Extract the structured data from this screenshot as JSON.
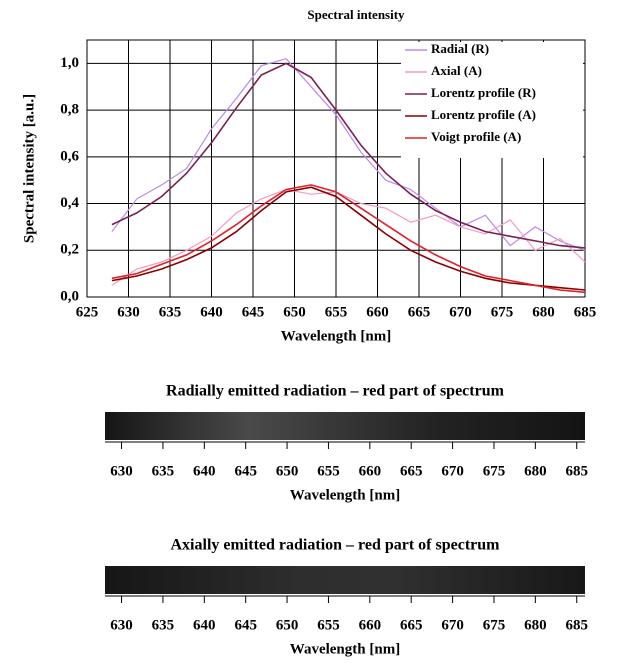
{
  "chart_data": [
    {
      "type": "line",
      "title": "Spectral intensity",
      "xlabel": "Wavelength [nm]",
      "ylabel": "Spectral intensity [a.u.]",
      "x": [
        628,
        631,
        634,
        637,
        640,
        643,
        646,
        649,
        652,
        655,
        658,
        661,
        664,
        667,
        670,
        673,
        676,
        679,
        682,
        685
      ],
      "series": [
        {
          "name": "Radial (R)",
          "color": "#b98ae8",
          "values": [
            0.28,
            0.42,
            0.48,
            0.55,
            0.72,
            0.85,
            0.99,
            1.02,
            0.9,
            0.78,
            0.62,
            0.5,
            0.46,
            0.38,
            0.3,
            0.35,
            0.22,
            0.3,
            0.24,
            0.2
          ]
        },
        {
          "name": "Axial (A)",
          "color": "#f59ac0",
          "values": [
            0.05,
            0.12,
            0.15,
            0.2,
            0.26,
            0.36,
            0.42,
            0.46,
            0.44,
            0.45,
            0.4,
            0.38,
            0.32,
            0.35,
            0.3,
            0.27,
            0.33,
            0.2,
            0.25,
            0.15
          ]
        },
        {
          "name": "Lorentz profile (R)",
          "color": "#7b2050",
          "values": [
            0.31,
            0.36,
            0.43,
            0.53,
            0.66,
            0.81,
            0.95,
            1.0,
            0.94,
            0.8,
            0.65,
            0.53,
            0.44,
            0.37,
            0.32,
            0.28,
            0.26,
            0.24,
            0.22,
            0.21
          ]
        },
        {
          "name": "Lorentz profile (A)",
          "color": "#8b0000",
          "values": [
            0.07,
            0.09,
            0.12,
            0.16,
            0.21,
            0.28,
            0.37,
            0.45,
            0.47,
            0.43,
            0.35,
            0.27,
            0.2,
            0.15,
            0.11,
            0.08,
            0.06,
            0.05,
            0.04,
            0.03
          ]
        },
        {
          "name": "Voigt profile (A)",
          "color": "#e0202a",
          "values": [
            0.08,
            0.1,
            0.14,
            0.18,
            0.24,
            0.31,
            0.39,
            0.46,
            0.48,
            0.45,
            0.38,
            0.31,
            0.24,
            0.18,
            0.13,
            0.09,
            0.07,
            0.05,
            0.03,
            0.02
          ]
        }
      ],
      "xlim": [
        625,
        685
      ],
      "xticks": [
        625,
        630,
        635,
        640,
        645,
        650,
        655,
        660,
        665,
        670,
        675,
        680,
        685
      ],
      "ylim": [
        0,
        1.1
      ],
      "yticks": [
        {
          "value": 0,
          "label": "0,0"
        },
        {
          "value": 0.2,
          "label": "0,2"
        },
        {
          "value": 0.4,
          "label": "0,4"
        },
        {
          "value": 0.6,
          "label": "0,6"
        },
        {
          "value": 0.8,
          "label": "0,8"
        },
        {
          "value": 1.0,
          "label": "1,0"
        }
      ],
      "grid": true,
      "legend": "top-right"
    },
    {
      "type": "image-strip",
      "title": "Radially emitted radiation – red part of spectrum",
      "xlabel": "Wavelength [nm]",
      "xlim": [
        628,
        686
      ],
      "xticks": [
        630,
        635,
        640,
        645,
        650,
        655,
        660,
        665,
        670,
        675,
        680,
        685
      ]
    },
    {
      "type": "image-strip",
      "title": "Axially emitted radiation – red part of spectrum",
      "xlabel": "Wavelength [nm]",
      "xlim": [
        628,
        686
      ],
      "xticks": [
        630,
        635,
        640,
        645,
        650,
        655,
        660,
        665,
        670,
        675,
        680,
        685
      ]
    }
  ]
}
